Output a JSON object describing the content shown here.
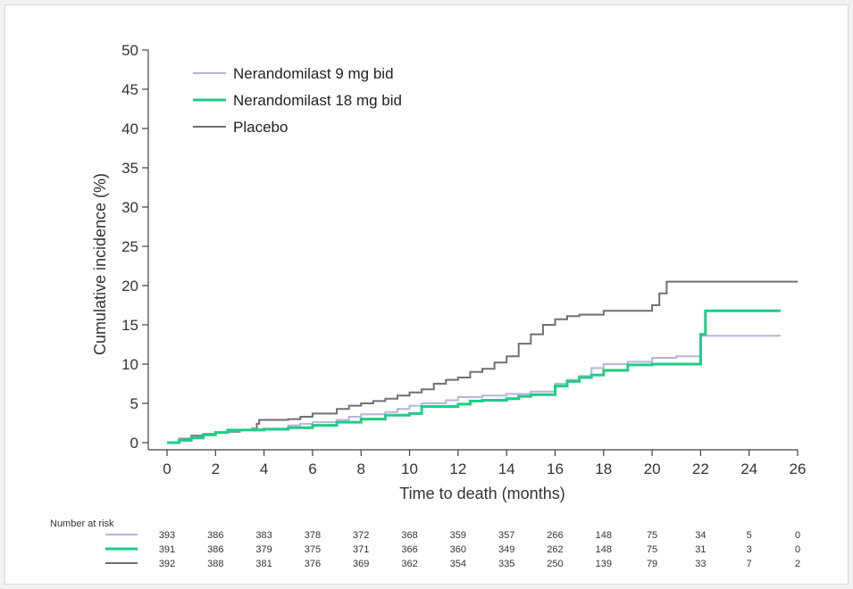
{
  "chart_data": {
    "type": "line",
    "step": true,
    "xlabel": "Time to death (months)",
    "ylabel": "Cumulative incidence (%)",
    "xlim": [
      0,
      26
    ],
    "ylim": [
      0,
      50
    ],
    "x_ticks": [
      0,
      2,
      4,
      6,
      8,
      10,
      12,
      14,
      16,
      18,
      20,
      22,
      24,
      26
    ],
    "y_ticks": [
      0,
      5,
      10,
      15,
      20,
      25,
      30,
      35,
      40,
      45,
      50
    ],
    "grid": false,
    "legend_position": "top-left",
    "series": [
      {
        "name": "Nerandomilast 9 mg bid",
        "color": "#b7b3dc",
        "x": [
          0,
          0.5,
          1.0,
          1.5,
          2.0,
          2.5,
          3.0,
          3.5,
          4.0,
          5.0,
          5.5,
          6.0,
          7.0,
          7.5,
          8.0,
          9.0,
          9.5,
          10.0,
          10.5,
          11.5,
          12.0,
          13.0,
          14.0,
          15.0,
          16.0,
          16.5,
          17.0,
          17.5,
          18.0,
          19.0,
          20.0,
          21.0,
          22.0,
          25.3
        ],
        "y": [
          0,
          0.4,
          0.7,
          1.0,
          1.3,
          1.5,
          1.6,
          1.7,
          1.8,
          2.2,
          2.4,
          2.6,
          2.9,
          3.3,
          3.6,
          3.9,
          4.3,
          4.7,
          5.0,
          5.4,
          5.8,
          6.0,
          6.2,
          6.5,
          7.5,
          8.0,
          8.5,
          9.5,
          10.0,
          10.3,
          10.8,
          11.0,
          13.6,
          13.6
        ]
      },
      {
        "name": "Nerandomilast 18 mg bid",
        "color": "#1dcd86",
        "x": [
          0,
          0.5,
          1.0,
          1.5,
          2.0,
          2.5,
          3.0,
          3.5,
          4.0,
          5.0,
          6.0,
          7.0,
          8.0,
          9.0,
          10.0,
          10.5,
          11.0,
          12.0,
          12.5,
          13.0,
          14.0,
          14.5,
          15.0,
          16.0,
          16.5,
          17.0,
          17.5,
          18.0,
          19.0,
          20.0,
          21.0,
          22.0,
          22.2,
          25.3
        ],
        "y": [
          0,
          0.3,
          0.6,
          1.0,
          1.3,
          1.6,
          1.6,
          1.6,
          1.7,
          1.9,
          2.2,
          2.6,
          3.0,
          3.5,
          3.7,
          4.6,
          4.6,
          4.9,
          5.3,
          5.4,
          5.6,
          5.9,
          6.1,
          7.2,
          7.8,
          8.3,
          8.6,
          9.2,
          9.9,
          10.0,
          10.0,
          13.8,
          16.8,
          16.8
        ]
      },
      {
        "name": "Placebo",
        "color": "#707070",
        "x": [
          0,
          0.5,
          1.0,
          1.5,
          2.0,
          2.5,
          3.0,
          3.5,
          3.7,
          3.8,
          5.0,
          5.5,
          6.0,
          7.0,
          7.5,
          8.0,
          8.5,
          9.0,
          9.5,
          10.0,
          10.5,
          11.0,
          11.5,
          12.0,
          12.5,
          13.0,
          13.5,
          14.0,
          14.5,
          15.0,
          15.5,
          16.0,
          16.5,
          17.0,
          18.0,
          19.0,
          20.0,
          20.3,
          20.6,
          26.0
        ],
        "y": [
          0,
          0.5,
          0.9,
          1.1,
          1.3,
          1.4,
          1.6,
          1.8,
          2.4,
          2.9,
          3.0,
          3.3,
          3.7,
          4.3,
          4.7,
          5.0,
          5.3,
          5.6,
          6.0,
          6.4,
          6.8,
          7.5,
          8.0,
          8.3,
          9.0,
          9.4,
          10.2,
          11.0,
          12.6,
          13.8,
          15.0,
          15.7,
          16.1,
          16.3,
          16.8,
          16.8,
          17.5,
          19.0,
          20.5,
          20.5
        ]
      }
    ],
    "risk_table": {
      "title": "Number at risk",
      "times": [
        0,
        2,
        4,
        6,
        8,
        10,
        12,
        14,
        16,
        18,
        20,
        22,
        24,
        26
      ],
      "rows": [
        {
          "series": "Nerandomilast 9 mg bid",
          "values": [
            393,
            386,
            383,
            378,
            372,
            368,
            359,
            357,
            266,
            148,
            75,
            34,
            5,
            0
          ]
        },
        {
          "series": "Nerandomilast 18 mg bid",
          "values": [
            391,
            386,
            379,
            375,
            371,
            366,
            360,
            349,
            262,
            148,
            75,
            31,
            3,
            0
          ]
        },
        {
          "series": "Placebo",
          "values": [
            392,
            388,
            381,
            376,
            369,
            362,
            354,
            335,
            250,
            139,
            79,
            33,
            7,
            2
          ]
        }
      ]
    }
  }
}
